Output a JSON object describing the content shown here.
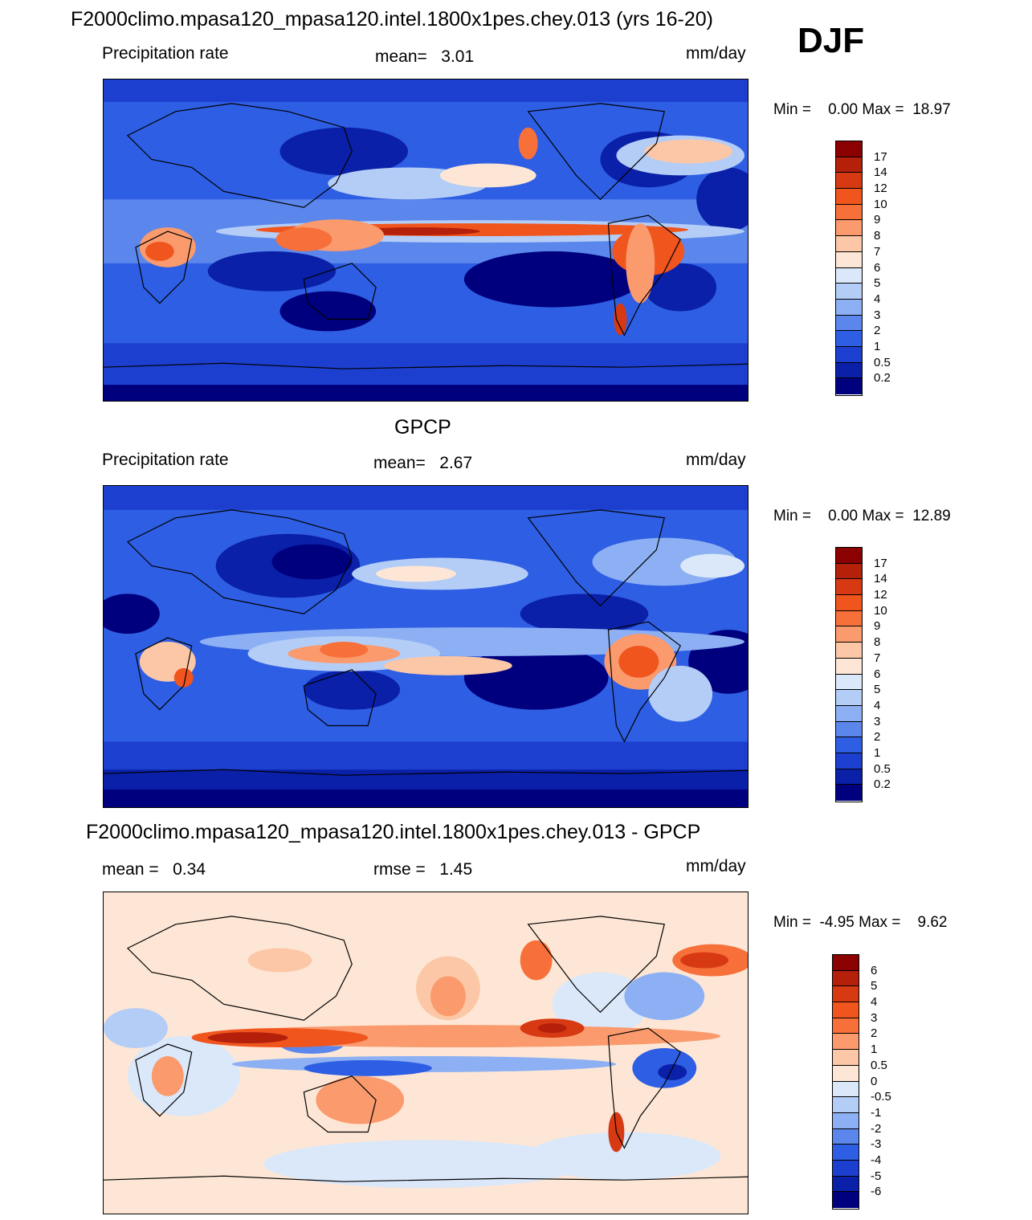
{
  "season": "DJF",
  "colorbar_abs": {
    "labels": [
      "17",
      "14",
      "12",
      "10",
      "9",
      "8",
      "7",
      "6",
      "5",
      "4",
      "3",
      "2",
      "1",
      "0.5",
      "0.2"
    ],
    "colors": [
      "#8b0000",
      "#b5200b",
      "#d73a12",
      "#f0551e",
      "#f7703a",
      "#fa9a6d",
      "#fcc7a6",
      "#fde6d5",
      "#dbe8fa",
      "#b4cdf7",
      "#8cb0f3",
      "#5b87ec",
      "#2e5ee3",
      "#1d3fd0",
      "#0a20a8",
      "#00007e"
    ]
  },
  "colorbar_diff": {
    "labels": [
      "6",
      "5",
      "4",
      "3",
      "2",
      "1",
      "0.5",
      "0",
      "-0.5",
      "-1",
      "-2",
      "-3",
      "-4",
      "-5",
      "-6"
    ],
    "colors": [
      "#8b0000",
      "#b5200b",
      "#d73a12",
      "#f0551e",
      "#f7703a",
      "#fa9a6d",
      "#fcc7a6",
      "#fde6d5",
      "#dbe8fa",
      "#b4cdf7",
      "#8cb0f3",
      "#5b87ec",
      "#2e5ee3",
      "#1d3fd0",
      "#0a20a8",
      "#00007e"
    ]
  },
  "panels": [
    {
      "title": "F2000climo.mpasa120_mpasa120.intel.1800x1pes.chey.013 (yrs 16-20)",
      "left_label": "Precipitation rate",
      "center_label": "mean=   3.01",
      "units": "mm/day",
      "minmax": "Min =    0.00 Max =  18.97",
      "kind": "model"
    },
    {
      "title": "GPCP",
      "left_label": "Precipitation rate",
      "center_label": "mean=   2.67",
      "units": "mm/day",
      "minmax": "Min =    0.00 Max =  12.89",
      "kind": "obs"
    },
    {
      "title": "F2000climo.mpasa120_mpasa120.intel.1800x1pes.chey.013 - GPCP",
      "left_label": "mean =   0.34",
      "center_label": "rmse =   1.45",
      "units": "mm/day",
      "minmax": "Min =  -4.95 Max =    9.62",
      "kind": "diff"
    }
  ]
}
